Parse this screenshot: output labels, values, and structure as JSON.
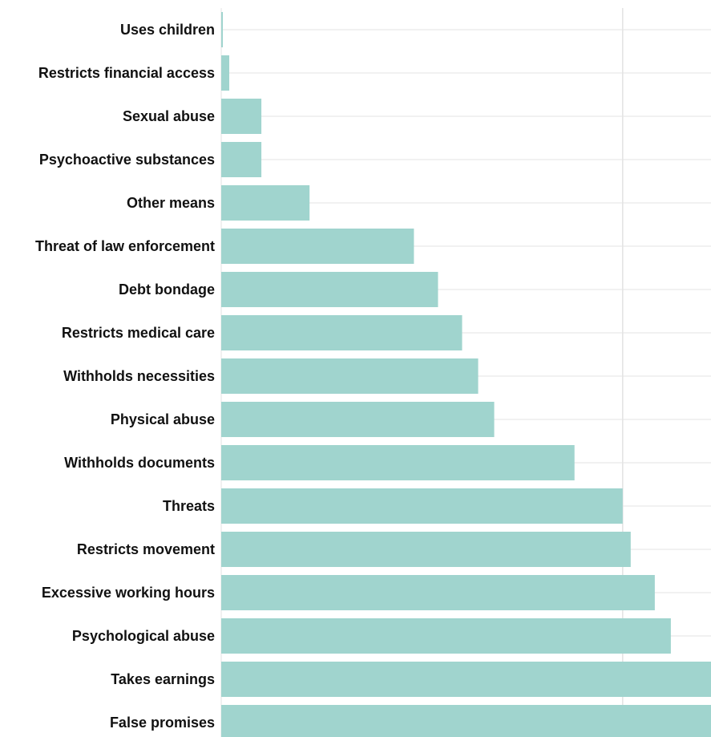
{
  "chart_data": {
    "type": "bar",
    "orientation": "horizontal",
    "categories": [
      "Uses children",
      "Restricts financial access",
      "Sexual abuse",
      "Psychoactive substances",
      "Other means",
      "Threat of law enforcement",
      "Debt bondage",
      "Restricts medical care",
      "Withholds necessities",
      "Physical abuse",
      "Withholds documents",
      "Threats",
      "Restricts movement",
      "Excessive working hours",
      "Psychological abuse",
      "Takes earnings",
      "False promises"
    ],
    "values": [
      0.4,
      2,
      10,
      10,
      22,
      48,
      54,
      60,
      64,
      68,
      88,
      100,
      102,
      108,
      112,
      122,
      126
    ],
    "xlim": [
      0,
      122
    ],
    "gridlines_x": [
      100
    ],
    "grid": true,
    "title": "",
    "xlabel": "",
    "ylabel": "",
    "bar_color": "#a0d4ce",
    "grid_color": "#e3e3e3"
  }
}
